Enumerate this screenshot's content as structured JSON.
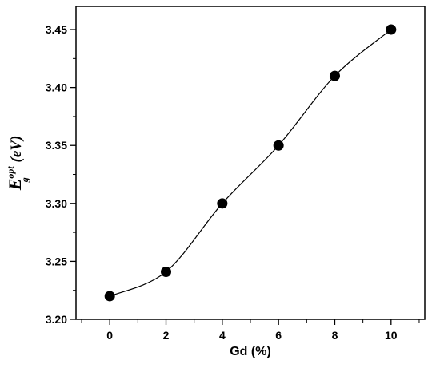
{
  "chart_data": {
    "type": "scatter",
    "title": "",
    "xlabel": "Gd (%)",
    "ylabel": {
      "main": "E",
      "sup": "opt",
      "sub": "g",
      "unit": " (eV)"
    },
    "xlim": [
      -1.2,
      11.2
    ],
    "ylim": [
      3.2,
      3.47
    ],
    "x_ticks": [
      0,
      2,
      4,
      6,
      8,
      10
    ],
    "x_tick_labels": [
      "0",
      "2",
      "4",
      "6",
      "8",
      "10"
    ],
    "y_ticks": [
      3.2,
      3.25,
      3.3,
      3.35,
      3.4,
      3.45
    ],
    "y_tick_labels": [
      "3.20",
      "3.25",
      "3.30",
      "3.35",
      "3.40",
      "3.45"
    ],
    "grid": false,
    "legend": "none",
    "series": [
      {
        "x": [
          0,
          2,
          4,
          6,
          8,
          10
        ],
        "y": [
          3.22,
          3.241,
          3.3,
          3.35,
          3.41,
          3.45
        ],
        "marker": "filled-circle",
        "color": "#000000"
      }
    ],
    "fit_curve": {
      "style": "smooth-line",
      "color": "#000000"
    }
  }
}
